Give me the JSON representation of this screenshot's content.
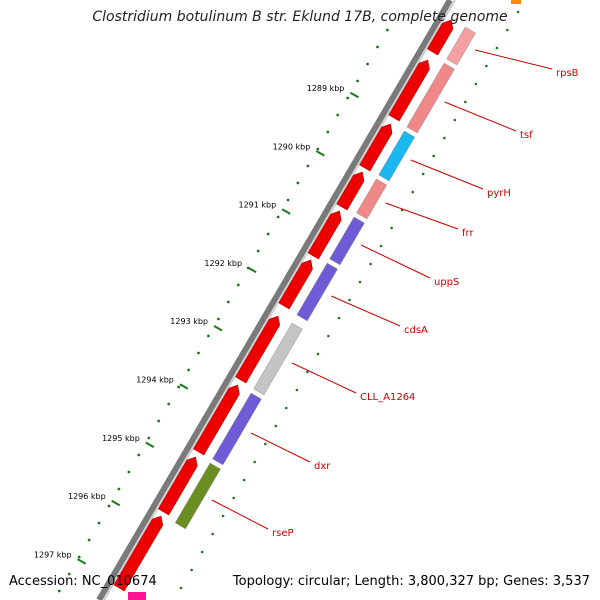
{
  "title": "Clostridium botulinum B str. Eklund 17B, complete genome",
  "accession_label": "Accession: NC_010674",
  "summary_label": "Topology: circular; Length: 3,800,327 bp; Genes: 3,537",
  "scale_ticks": [
    {
      "label": "1289 kbp"
    },
    {
      "label": "1290 kbp"
    },
    {
      "label": "1291 kbp"
    },
    {
      "label": "1292 kbp"
    },
    {
      "label": "1293 kbp"
    },
    {
      "label": "1294 kbp"
    },
    {
      "label": "1295 kbp"
    },
    {
      "label": "1296 kbp"
    },
    {
      "label": "1297 kbp"
    }
  ],
  "genes": [
    {
      "label": "rpsB",
      "color": "#f4a0a0"
    },
    {
      "label": "tsf",
      "color": "#f08888"
    },
    {
      "label": "pyrH",
      "color": "#1ab8f0"
    },
    {
      "label": "frr",
      "color": "#f08888"
    },
    {
      "label": "uppS",
      "color": "#6f5bd6"
    },
    {
      "label": "cdsA",
      "color": "#6f5bd6"
    },
    {
      "label": "CLL_A1264",
      "color": "#c4c4c4"
    },
    {
      "label": "dxr",
      "color": "#6f5bd6"
    },
    {
      "label": "rseP",
      "color": "#6b8e23"
    }
  ],
  "colors": {
    "cds": "#ee0000",
    "label": "#cc0000",
    "tick": "#1a7a1a"
  }
}
